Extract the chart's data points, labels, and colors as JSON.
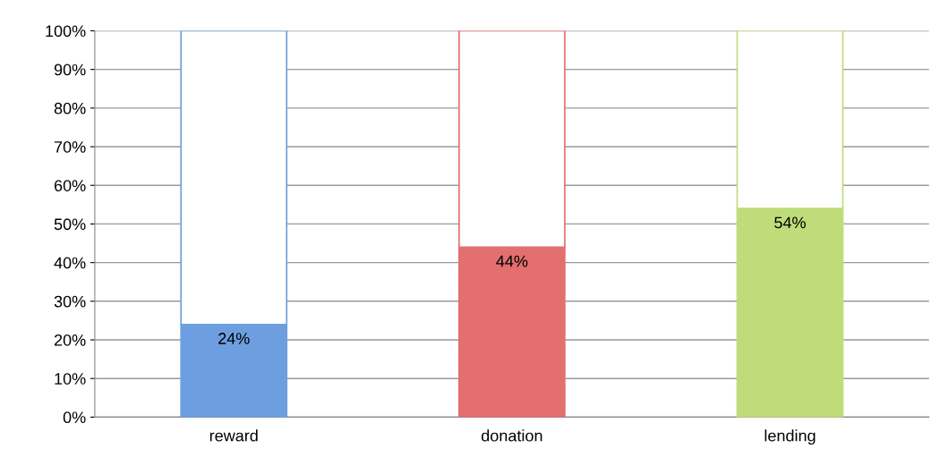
{
  "chart_data": {
    "type": "bar",
    "stacked": true,
    "categories": [
      "reward",
      "donation",
      "lending"
    ],
    "series": [
      {
        "colors": [
          "#6d9fe0",
          "#e46f6f",
          "#bedd7a"
        ],
        "values": [
          24,
          44,
          54
        ],
        "value_labels": [
          "24%",
          "44%",
          "54%"
        ]
      },
      {
        "colors": [
          "#ffffff",
          "#ffffff",
          "#ffffff"
        ],
        "values": [
          76,
          56,
          46
        ]
      }
    ],
    "ylim": [
      0,
      100
    ],
    "yticks": [
      {
        "value": 0,
        "label": "0%"
      },
      {
        "value": 10,
        "label": "10%"
      },
      {
        "value": 20,
        "label": "20%"
      },
      {
        "value": 30,
        "label": "30%"
      },
      {
        "value": 40,
        "label": "40%"
      },
      {
        "value": 50,
        "label": "50%"
      },
      {
        "value": 60,
        "label": "60%"
      },
      {
        "value": 70,
        "label": "70%"
      },
      {
        "value": 80,
        "label": "80%"
      },
      {
        "value": 90,
        "label": "90%"
      },
      {
        "value": 100,
        "label": "100%"
      }
    ],
    "grid": "y"
  }
}
